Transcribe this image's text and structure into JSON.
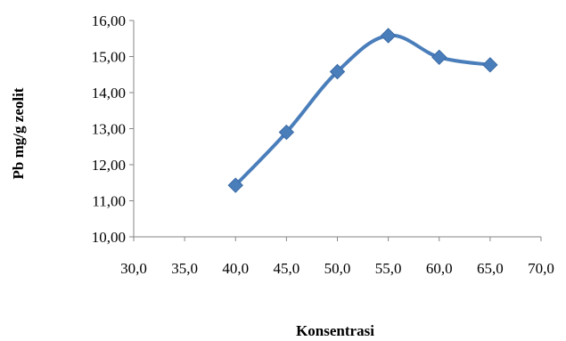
{
  "chart_data": {
    "type": "line",
    "title": "",
    "xlabel": "Konsentrasi",
    "ylabel": "Pb mg/g zeolit",
    "xlim": [
      30,
      70
    ],
    "ylim": [
      10,
      16
    ],
    "x_ticks": [
      "30,0",
      "35,0",
      "40,0",
      "45,0",
      "50,0",
      "55,0",
      "60,0",
      "65,0",
      "70,0"
    ],
    "y_ticks": [
      "10,00",
      "11,00",
      "12,00",
      "13,00",
      "14,00",
      "15,00",
      "16,00"
    ],
    "grid": false,
    "legend": "none",
    "marker": "diamond",
    "line_style": "smooth",
    "series": [
      {
        "color": "#4a7ebb",
        "x": [
          40,
          45,
          50,
          55,
          60,
          65
        ],
        "y": [
          11.43,
          12.9,
          14.58,
          15.58,
          14.98,
          14.77
        ]
      }
    ]
  }
}
